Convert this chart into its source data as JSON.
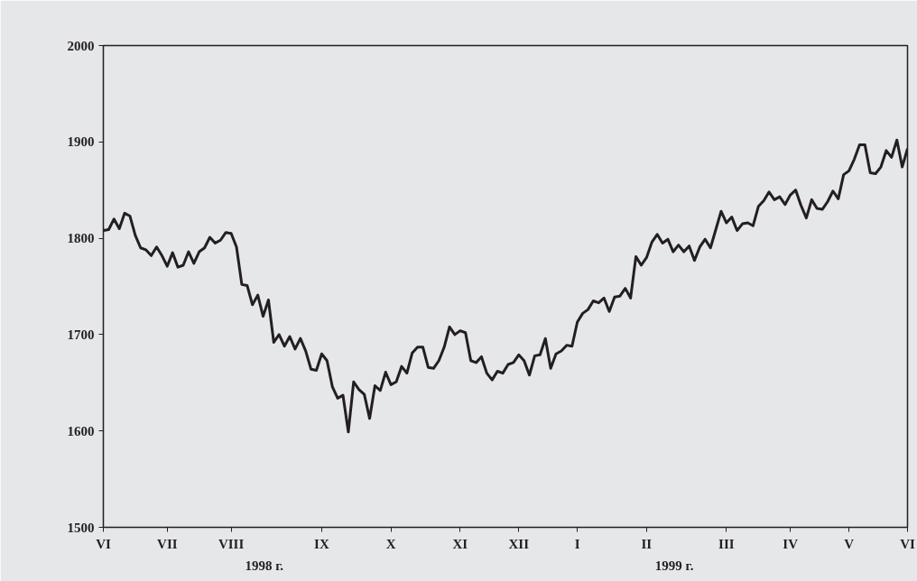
{
  "chart_data": {
    "type": "line",
    "categories": [
      "VI",
      null,
      null,
      null,
      null,
      null,
      null,
      null,
      null,
      null,
      null,
      null,
      "VII",
      null,
      null,
      null,
      null,
      null,
      null,
      null,
      null,
      null,
      null,
      null,
      "VIII",
      null,
      null,
      null,
      null,
      null,
      null,
      null,
      null,
      null,
      null,
      null,
      null,
      null,
      null,
      null,
      null,
      "IX",
      null,
      null,
      null,
      null,
      null,
      null,
      null,
      null,
      null,
      null,
      null,
      null,
      "X",
      null,
      null,
      null,
      null,
      null,
      null,
      null,
      null,
      null,
      null,
      null,
      null,
      "XI",
      null,
      null,
      null,
      null,
      null,
      null,
      null,
      null,
      null,
      null,
      "XII",
      null,
      null,
      null,
      null,
      null,
      null,
      null,
      null,
      null,
      null,
      "I",
      null,
      null,
      null,
      null,
      null,
      null,
      null,
      null,
      null,
      null,
      null,
      null,
      "II",
      null,
      null,
      null,
      null,
      null,
      null,
      null,
      null,
      null,
      null,
      null,
      null,
      null,
      null,
      "III",
      null,
      null,
      null,
      null,
      null,
      null,
      null,
      null,
      null,
      null,
      null,
      "IV",
      null,
      null,
      null,
      null,
      null,
      null,
      null,
      null,
      null,
      null,
      "V",
      null,
      null,
      null,
      null,
      null,
      null,
      null,
      null,
      null,
      null,
      "VI"
    ],
    "series": [
      {
        "color": "#231f20",
        "values": [
          1808,
          1809,
          1820,
          1810,
          1826,
          1823,
          1803,
          1790,
          1788,
          1782,
          1791,
          1782,
          1771,
          1785,
          1770,
          1772,
          1786,
          1774,
          1786,
          1790,
          1801,
          1795,
          1798,
          1806,
          1805,
          1791,
          1752,
          1751,
          1731,
          1741,
          1719,
          1736,
          1692,
          1700,
          1688,
          1698,
          1685,
          1696,
          1683,
          1664,
          1663,
          1680,
          1673,
          1646,
          1634,
          1637,
          1599,
          1651,
          1643,
          1638,
          1613,
          1647,
          1642,
          1661,
          1648,
          1651,
          1667,
          1660,
          1681,
          1687,
          1687,
          1666,
          1665,
          1673,
          1687,
          1708,
          1700,
          1704,
          1702,
          1673,
          1671,
          1677,
          1660,
          1653,
          1662,
          1660,
          1669,
          1671,
          1679,
          1673,
          1658,
          1678,
          1679,
          1696,
          1665,
          1680,
          1683,
          1689,
          1688,
          1713,
          1722,
          1726,
          1735,
          1733,
          1738,
          1724,
          1739,
          1740,
          1748,
          1738,
          1781,
          1772,
          1780,
          1796,
          1804,
          1795,
          1799,
          1786,
          1793,
          1786,
          1792,
          1777,
          1791,
          1799,
          1790,
          1809,
          1828,
          1816,
          1822,
          1808,
          1815,
          1816,
          1813,
          1833,
          1839,
          1848,
          1840,
          1843,
          1835,
          1845,
          1850,
          1834,
          1821,
          1840,
          1831,
          1830,
          1838,
          1849,
          1841,
          1866,
          1870,
          1882,
          1897,
          1897,
          1868,
          1867,
          1874,
          1891,
          1884,
          1902,
          1874,
          1893
        ]
      }
    ],
    "ylim": [
      1500,
      2000
    ],
    "yticks": [
      1500,
      1600,
      1700,
      1800,
      1900,
      2000
    ],
    "annotations": [
      "1998 г.",
      "1999 г."
    ],
    "grid": false,
    "marker": "none",
    "line_style": "solid"
  }
}
